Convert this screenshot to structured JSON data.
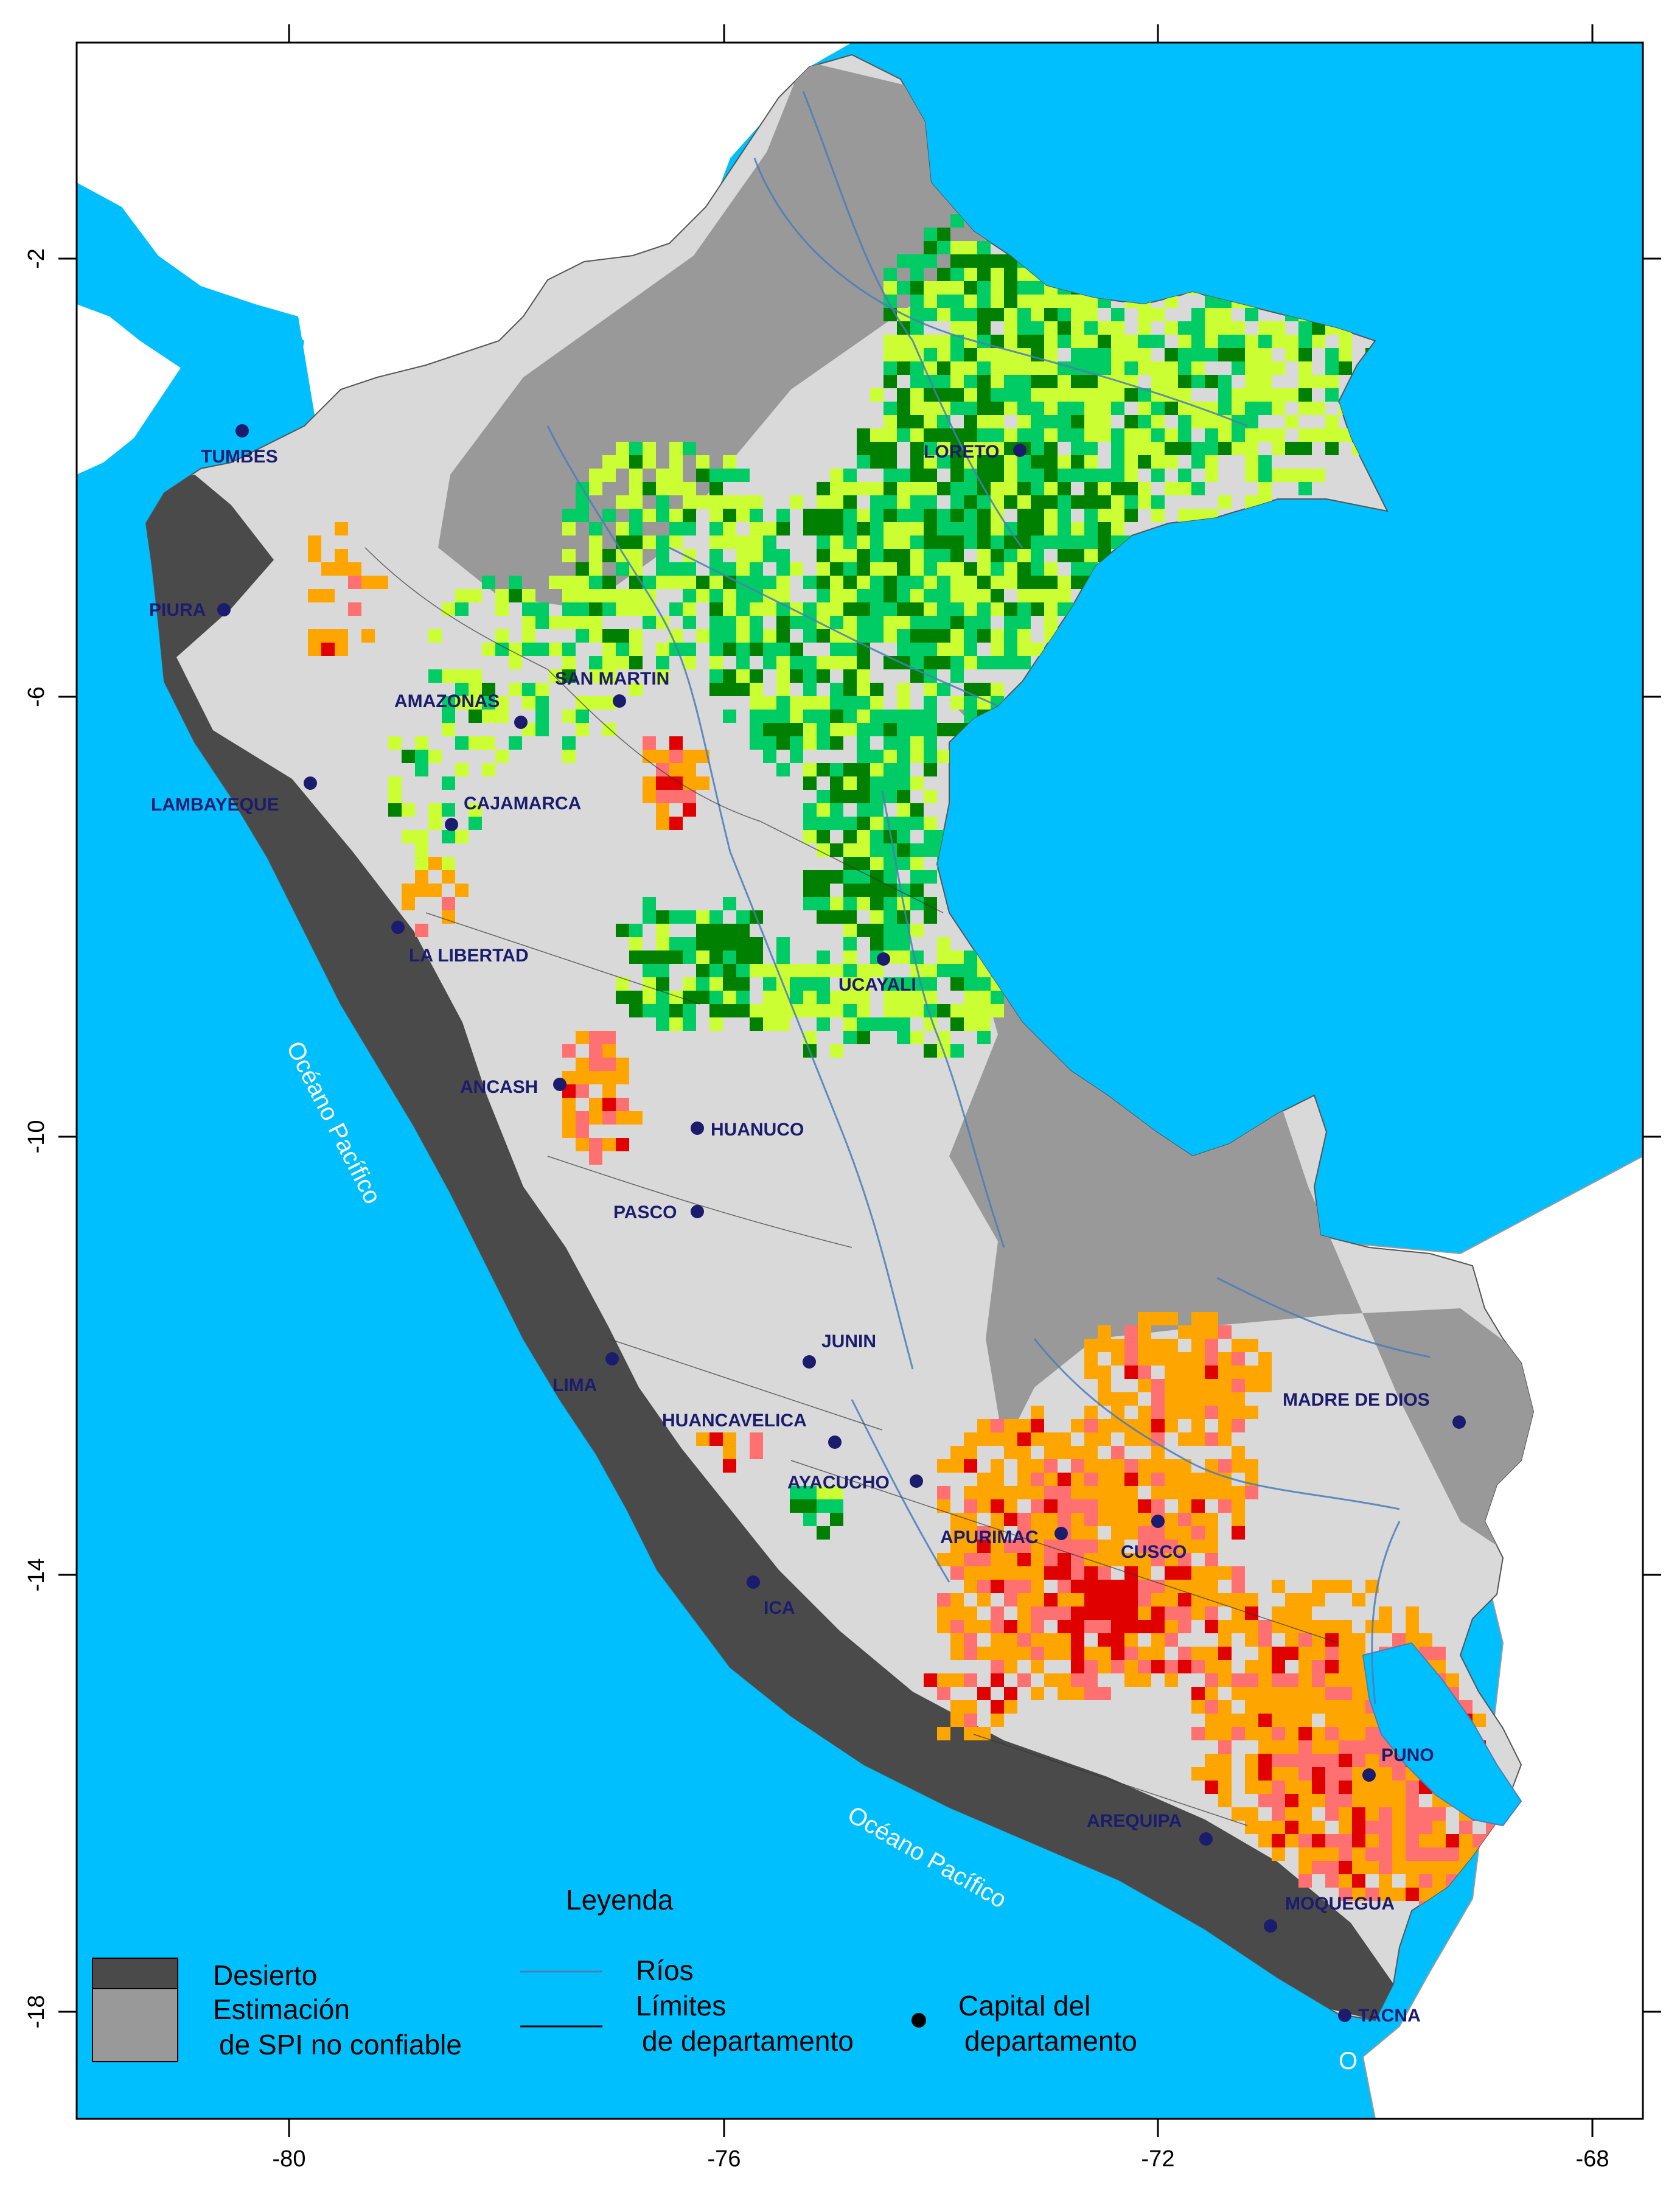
{
  "axes": {
    "x_ticks": [
      "-80",
      "-76",
      "-72",
      "-68"
    ],
    "y_ticks": [
      "-2",
      "-6",
      "-10",
      "-14",
      "-18"
    ]
  },
  "ocean_labels": [
    "Océano Pacífico",
    "Océano Pacífico"
  ],
  "partial_label": "O",
  "capitals": [
    {
      "name": "TUMBES"
    },
    {
      "name": "PIURA"
    },
    {
      "name": "LAMBAYEQUE"
    },
    {
      "name": "AMAZONAS"
    },
    {
      "name": "SAN MARTIN"
    },
    {
      "name": "CAJAMARCA"
    },
    {
      "name": "LORETO"
    },
    {
      "name": "LA LIBERTAD"
    },
    {
      "name": "UCAYALI"
    },
    {
      "name": "ANCASH"
    },
    {
      "name": "HUANUCO"
    },
    {
      "name": "PASCO"
    },
    {
      "name": "JUNIN"
    },
    {
      "name": "LIMA"
    },
    {
      "name": "HUANCAVELICA"
    },
    {
      "name": "AYACUCHO"
    },
    {
      "name": "APURIMAC"
    },
    {
      "name": "CUSCO"
    },
    {
      "name": "ICA"
    },
    {
      "name": "MADRE DE DIOS"
    },
    {
      "name": "PUNO"
    },
    {
      "name": "AREQUIPA"
    },
    {
      "name": "MOQUEGUA"
    },
    {
      "name": "TACNA"
    }
  ],
  "legend": {
    "title": "Leyenda",
    "desert": "Desierto",
    "unreliable_line1": "Estimación",
    "unreliable_line2": "de SPI no confiable",
    "rivers": "Ríos",
    "limits_line1": "Límites",
    "limits_line2": "de departamento",
    "capital_line1": "Capital del",
    "capital_line2": "departamento"
  },
  "colors": {
    "ocean": "#00bfff",
    "land_outside": "#ffffff",
    "peru_base": "#d9d9d9",
    "desert": "#4a4a4a",
    "unreliable": "#999999",
    "dark_green": "#008000",
    "green": "#00cc66",
    "light_green": "#ccff33",
    "orange": "#ffa500",
    "salmon": "#ff7070",
    "red": "#e00000",
    "river": "#4a7db8",
    "capital_dot": "#1c1c6e",
    "lake": "#00bfff"
  }
}
